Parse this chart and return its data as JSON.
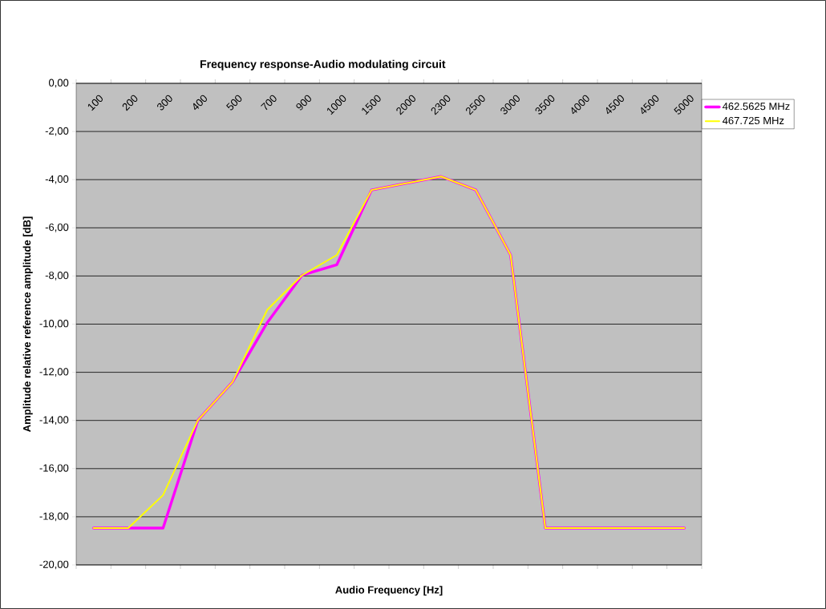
{
  "chart_data": {
    "type": "line",
    "title": "Frequency response-Audio modulating circuit",
    "xlabel": "Audio Frequency [Hz]",
    "ylabel": "Amplitude relative reference  amplitude [dB]",
    "categories": [
      "100",
      "200",
      "300",
      "400",
      "500",
      "700",
      "900",
      "1000",
      "1500",
      "2000",
      "2300",
      "2500",
      "3000",
      "3500",
      "4000",
      "4500",
      "4500",
      "5000"
    ],
    "series": [
      {
        "name": "462.5625 MHz",
        "color": "#ff00ff",
        "values": [
          -18.47,
          -18.47,
          -18.47,
          -14.0,
          -12.4,
          -9.93,
          -7.97,
          -7.53,
          -4.43,
          -4.15,
          -3.87,
          -4.43,
          -7.13,
          -18.47,
          -18.47,
          -18.47,
          -18.47,
          -18.47
        ]
      },
      {
        "name": "467.725 MHz",
        "color": "#ffff00",
        "values": [
          -18.47,
          -18.47,
          -17.1,
          -14.0,
          -12.4,
          -9.4,
          -7.97,
          -7.13,
          -4.43,
          -4.15,
          -3.87,
          -4.43,
          -7.13,
          -18.47,
          -18.47,
          -18.47,
          -18.47,
          -18.47
        ]
      }
    ],
    "ylim": [
      -20,
      0
    ],
    "yticks": [
      {
        "value": -20,
        "label": "-20,00"
      },
      {
        "value": -18,
        "label": "-18,00"
      },
      {
        "value": -16,
        "label": "-16,00"
      },
      {
        "value": -14,
        "label": "-14,00"
      },
      {
        "value": -12,
        "label": "-12,00"
      },
      {
        "value": -10,
        "label": "-10,00"
      },
      {
        "value": -8,
        "label": "-8,00"
      },
      {
        "value": -6,
        "label": "-6,00"
      },
      {
        "value": -4,
        "label": "-4,00"
      },
      {
        "value": -2,
        "label": "-2,00"
      },
      {
        "value": 0,
        "label": "0,00"
      }
    ],
    "grid": "y",
    "legend": "right",
    "marker": "none",
    "line_style": "solid"
  }
}
